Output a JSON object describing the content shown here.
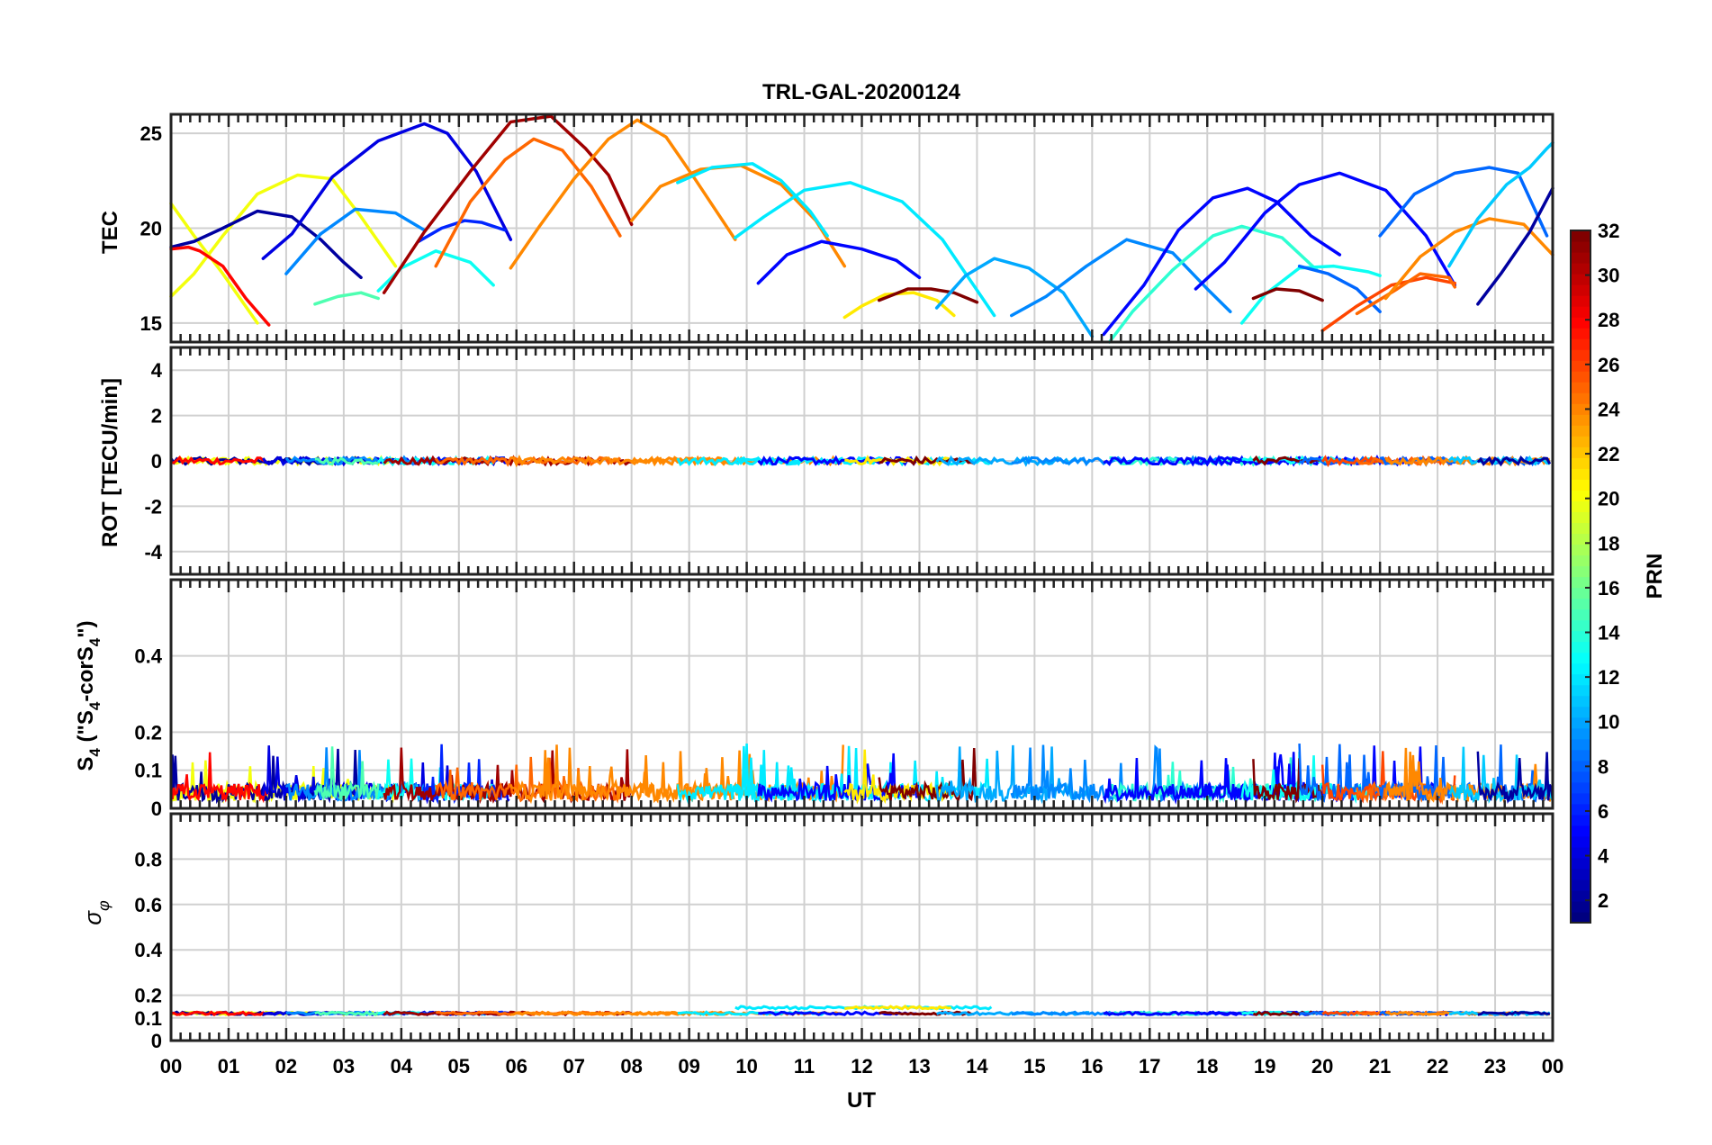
{
  "figure": {
    "title": "TRL-GAL-20200124",
    "xlabel": "UT",
    "x_tick_labels": [
      "00",
      "01",
      "02",
      "03",
      "04",
      "05",
      "06",
      "07",
      "08",
      "09",
      "10",
      "11",
      "12",
      "13",
      "14",
      "15",
      "16",
      "17",
      "18",
      "19",
      "20",
      "21",
      "22",
      "23",
      "00"
    ]
  },
  "panels": {
    "tec": {
      "ylabel": "TEC",
      "tick_labels": [
        "15",
        "20",
        "25"
      ]
    },
    "rot": {
      "ylabel": "ROT [TECU/min]",
      "tick_labels": [
        "-4",
        "-2",
        "0",
        "2",
        "4"
      ]
    },
    "s4": {
      "ylabel_main": "S",
      "ylabel_sub1": "4",
      "ylabel_mid": " (\"S",
      "ylabel_sub2": "4",
      "ylabel_mid2": "-corS",
      "ylabel_sub3": "4",
      "ylabel_end": "\")",
      "tick_labels": [
        "0",
        "0.1",
        "0.2",
        "0.4"
      ]
    },
    "sigma": {
      "ylabel_main": "σ",
      "ylabel_sub": "φ",
      "tick_labels": [
        "0",
        "0.1",
        "0.2",
        "0.4",
        "0.6",
        "0.8"
      ]
    }
  },
  "colorbar": {
    "label": "PRN",
    "tick_labels": [
      "2",
      "4",
      "6",
      "8",
      "10",
      "12",
      "14",
      "16",
      "18",
      "20",
      "22",
      "24",
      "26",
      "28",
      "30",
      "32"
    ],
    "colormap": "jet",
    "range": [
      1,
      32
    ]
  },
  "chart_data": [
    {
      "type": "line",
      "title": "TRL-GAL-20200124",
      "ylabel": "TEC",
      "xlim": [
        0,
        24
      ],
      "ylim": [
        14,
        26
      ],
      "grid": true,
      "series": [
        {
          "prn": 20,
          "points": [
            [
              0.0,
              21.3
            ],
            [
              0.4,
              19.6
            ],
            [
              0.9,
              17.6
            ],
            [
              1.5,
              15.0
            ]
          ]
        },
        {
          "prn": 20,
          "points": [
            [
              0.0,
              16.4
            ],
            [
              0.4,
              17.6
            ],
            [
              0.9,
              19.6
            ],
            [
              1.5,
              21.8
            ],
            [
              2.2,
              22.8
            ],
            [
              2.8,
              22.6
            ],
            [
              3.3,
              20.6
            ],
            [
              3.9,
              18.0
            ]
          ]
        },
        {
          "prn": 2,
          "points": [
            [
              0.0,
              19.0
            ],
            [
              0.4,
              19.3
            ],
            [
              0.9,
              20.0
            ],
            [
              1.5,
              20.9
            ],
            [
              2.1,
              20.6
            ],
            [
              2.6,
              19.4
            ],
            [
              3.0,
              18.2
            ],
            [
              3.3,
              17.4
            ]
          ]
        },
        {
          "prn": 28,
          "points": [
            [
              0.0,
              18.9
            ],
            [
              0.3,
              19.0
            ],
            [
              0.5,
              18.8
            ],
            [
              0.9,
              18.0
            ],
            [
              1.3,
              16.3
            ],
            [
              1.7,
              14.9
            ]
          ]
        },
        {
          "prn": 4,
          "points": [
            [
              1.6,
              18.4
            ],
            [
              2.1,
              19.7
            ],
            [
              2.8,
              22.7
            ],
            [
              3.6,
              24.6
            ],
            [
              4.4,
              25.5
            ],
            [
              4.8,
              25.0
            ],
            [
              5.3,
              23.0
            ],
            [
              5.9,
              19.4
            ]
          ]
        },
        {
          "prn": 9,
          "points": [
            [
              2.0,
              17.6
            ],
            [
              2.6,
              19.7
            ],
            [
              3.2,
              21.0
            ],
            [
              3.9,
              20.8
            ],
            [
              4.4,
              19.9
            ]
          ]
        },
        {
          "prn": 15,
          "points": [
            [
              2.5,
              16.0
            ],
            [
              2.9,
              16.4
            ],
            [
              3.3,
              16.6
            ],
            [
              3.6,
              16.3
            ]
          ]
        },
        {
          "prn": 13,
          "points": [
            [
              3.6,
              16.7
            ],
            [
              4.0,
              17.9
            ],
            [
              4.6,
              18.8
            ],
            [
              5.2,
              18.2
            ],
            [
              5.6,
              17.0
            ]
          ]
        },
        {
          "prn": 6,
          "points": [
            [
              4.3,
              19.3
            ],
            [
              4.7,
              20.0
            ],
            [
              5.1,
              20.4
            ],
            [
              5.4,
              20.3
            ],
            [
              5.8,
              19.9
            ]
          ]
        },
        {
          "prn": 31,
          "points": [
            [
              3.7,
              16.6
            ],
            [
              4.4,
              19.8
            ],
            [
              5.2,
              23.0
            ],
            [
              5.9,
              25.6
            ],
            [
              6.6,
              25.9
            ],
            [
              7.2,
              24.2
            ],
            [
              7.6,
              22.8
            ],
            [
              8.0,
              20.2
            ]
          ]
        },
        {
          "prn": 25,
          "points": [
            [
              4.6,
              18.0
            ],
            [
              5.2,
              21.4
            ],
            [
              5.8,
              23.6
            ],
            [
              6.3,
              24.7
            ],
            [
              6.8,
              24.1
            ],
            [
              7.3,
              22.2
            ],
            [
              7.8,
              19.6
            ]
          ]
        },
        {
          "prn": 24,
          "points": [
            [
              5.9,
              17.9
            ],
            [
              6.4,
              20.1
            ],
            [
              7.0,
              22.6
            ],
            [
              7.6,
              24.7
            ],
            [
              8.1,
              25.7
            ],
            [
              8.6,
              24.8
            ],
            [
              9.1,
              22.6
            ],
            [
              9.8,
              19.4
            ]
          ]
        },
        {
          "prn": 24,
          "points": [
            [
              8.0,
              20.4
            ],
            [
              8.5,
              22.2
            ],
            [
              9.2,
              23.1
            ],
            [
              9.9,
              23.3
            ],
            [
              10.6,
              22.3
            ],
            [
              11.2,
              20.4
            ],
            [
              11.7,
              18.0
            ]
          ]
        },
        {
          "prn": 12,
          "points": [
            [
              8.8,
              22.4
            ],
            [
              9.4,
              23.2
            ],
            [
              10.1,
              23.4
            ],
            [
              10.6,
              22.5
            ],
            [
              11.1,
              20.9
            ],
            [
              11.4,
              19.6
            ]
          ]
        },
        {
          "prn": 12,
          "points": [
            [
              9.8,
              19.5
            ],
            [
              10.3,
              20.6
            ],
            [
              11.0,
              22.0
            ],
            [
              11.8,
              22.4
            ],
            [
              12.7,
              21.4
            ],
            [
              13.4,
              19.4
            ],
            [
              14.3,
              15.4
            ]
          ]
        },
        {
          "prn": 5,
          "points": [
            [
              10.2,
              17.1
            ],
            [
              10.7,
              18.6
            ],
            [
              11.3,
              19.3
            ],
            [
              12.0,
              18.9
            ],
            [
              12.6,
              18.3
            ],
            [
              13.0,
              17.4
            ]
          ]
        },
        {
          "prn": 21,
          "points": [
            [
              11.7,
              15.3
            ],
            [
              12.0,
              15.9
            ],
            [
              12.4,
              16.5
            ],
            [
              12.9,
              16.6
            ],
            [
              13.3,
              16.2
            ],
            [
              13.6,
              15.4
            ]
          ]
        },
        {
          "prn": 32,
          "points": [
            [
              12.3,
              16.2
            ],
            [
              12.8,
              16.8
            ],
            [
              13.2,
              16.8
            ],
            [
              13.6,
              16.6
            ],
            [
              14.0,
              16.1
            ]
          ]
        },
        {
          "prn": 10,
          "points": [
            [
              13.3,
              15.8
            ],
            [
              13.8,
              17.5
            ],
            [
              14.3,
              18.4
            ],
            [
              14.9,
              17.9
            ],
            [
              15.5,
              16.6
            ],
            [
              16.0,
              14.3
            ]
          ]
        },
        {
          "prn": 9,
          "points": [
            [
              14.6,
              15.4
            ],
            [
              15.2,
              16.4
            ],
            [
              15.9,
              18.0
            ],
            [
              16.6,
              19.4
            ],
            [
              17.4,
              18.7
            ],
            [
              18.0,
              16.8
            ],
            [
              18.4,
              15.6
            ]
          ]
        },
        {
          "prn": 14,
          "points": [
            [
              16.3,
              14.0
            ],
            [
              16.7,
              15.6
            ],
            [
              17.4,
              17.8
            ],
            [
              18.1,
              19.6
            ],
            [
              18.6,
              20.1
            ],
            [
              19.3,
              19.5
            ],
            [
              19.9,
              17.8
            ]
          ]
        },
        {
          "prn": 5,
          "points": [
            [
              16.2,
              14.4
            ],
            [
              16.9,
              17.0
            ],
            [
              17.5,
              19.9
            ],
            [
              18.1,
              21.6
            ],
            [
              18.7,
              22.1
            ],
            [
              19.2,
              21.4
            ],
            [
              19.8,
              19.6
            ],
            [
              20.3,
              18.6
            ]
          ]
        },
        {
          "prn": 5,
          "points": [
            [
              17.8,
              16.8
            ],
            [
              18.3,
              18.2
            ],
            [
              19.0,
              20.8
            ],
            [
              19.6,
              22.3
            ],
            [
              20.3,
              22.9
            ],
            [
              21.1,
              22.0
            ],
            [
              21.8,
              19.6
            ],
            [
              22.3,
              17.0
            ]
          ]
        },
        {
          "prn": 13,
          "points": [
            [
              18.6,
              15.0
            ],
            [
              19.0,
              16.5
            ],
            [
              19.6,
              17.9
            ],
            [
              20.2,
              18.0
            ],
            [
              20.8,
              17.7
            ],
            [
              21.0,
              17.5
            ]
          ]
        },
        {
          "prn": 32,
          "points": [
            [
              18.8,
              16.3
            ],
            [
              19.2,
              16.8
            ],
            [
              19.6,
              16.7
            ],
            [
              20.0,
              16.2
            ]
          ]
        },
        {
          "prn": 8,
          "points": [
            [
              19.6,
              18.0
            ],
            [
              20.1,
              17.6
            ],
            [
              20.6,
              16.8
            ],
            [
              21.0,
              15.6
            ]
          ]
        },
        {
          "prn": 26,
          "points": [
            [
              20.0,
              14.6
            ],
            [
              20.6,
              15.9
            ],
            [
              21.2,
              17.0
            ],
            [
              21.8,
              17.4
            ],
            [
              22.3,
              17.1
            ]
          ]
        },
        {
          "prn": 25,
          "points": [
            [
              20.6,
              15.5
            ],
            [
              21.3,
              16.8
            ],
            [
              21.7,
              17.6
            ],
            [
              22.2,
              17.4
            ],
            [
              22.3,
              16.9
            ]
          ]
        },
        {
          "prn": 8,
          "points": [
            [
              21.0,
              19.6
            ],
            [
              21.6,
              21.8
            ],
            [
              22.3,
              22.9
            ],
            [
              22.9,
              23.2
            ],
            [
              23.4,
              22.9
            ],
            [
              23.9,
              19.6
            ]
          ]
        },
        {
          "prn": 24,
          "points": [
            [
              21.1,
              16.3
            ],
            [
              21.7,
              18.5
            ],
            [
              22.3,
              19.8
            ],
            [
              22.9,
              20.5
            ],
            [
              23.5,
              20.2
            ],
            [
              24.0,
              18.6
            ]
          ]
        },
        {
          "prn": 11,
          "points": [
            [
              22.2,
              18.0
            ],
            [
              22.7,
              20.5
            ],
            [
              23.2,
              22.3
            ],
            [
              23.6,
              23.2
            ],
            [
              23.9,
              24.2
            ],
            [
              24.0,
              24.5
            ]
          ]
        },
        {
          "prn": 2,
          "points": [
            [
              22.7,
              16.0
            ],
            [
              23.1,
              17.6
            ],
            [
              23.6,
              19.8
            ],
            [
              24.0,
              22.1
            ]
          ]
        }
      ]
    },
    {
      "type": "line",
      "ylabel": "ROT [TECU/min]",
      "xlim": [
        0,
        24
      ],
      "ylim": [
        -5,
        5
      ],
      "grid": true,
      "series_description_values": {
        "baseline": 0.0,
        "spread": 0.15
      }
    },
    {
      "type": "line",
      "ylabel": "S4 (\"S4-corS4\")",
      "xlim": [
        0,
        24
      ],
      "ylim": [
        0,
        0.6
      ],
      "grid": true,
      "level": {
        "typical": 0.05,
        "max": 0.17
      }
    },
    {
      "type": "line",
      "ylabel": "σφ",
      "xlim": [
        0,
        24
      ],
      "ylim": [
        0,
        1
      ],
      "grid": true,
      "level": {
        "typical": 0.12,
        "max": 0.16
      }
    }
  ]
}
